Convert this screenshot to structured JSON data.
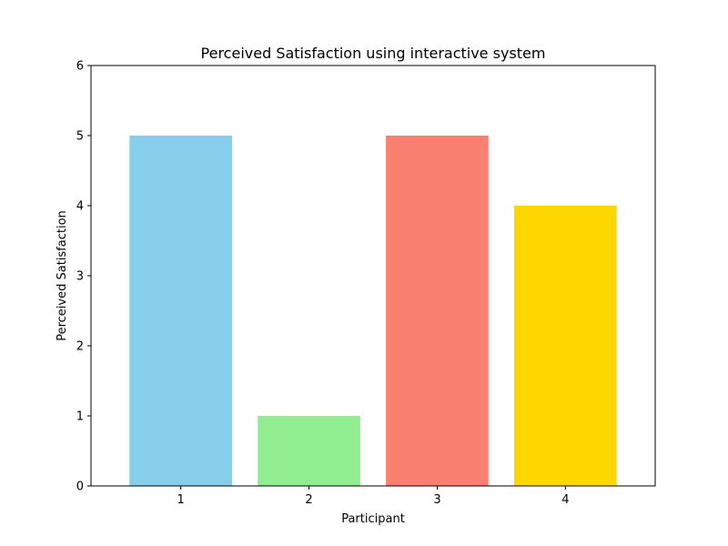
{
  "chart_data": {
    "type": "bar",
    "title": "Perceived Satisfaction using interactive system",
    "xlabel": "Participant",
    "ylabel": "Perceived Satisfaction",
    "categories": [
      "1",
      "2",
      "3",
      "4"
    ],
    "values": [
      5,
      1,
      5,
      4
    ],
    "colors": [
      "#87ceeb",
      "#90ee90",
      "#fa8072",
      "#ffd700"
    ],
    "ylim": [
      0,
      6
    ],
    "yticks": [
      "0",
      "1",
      "2",
      "3",
      "4",
      "5",
      "6"
    ],
    "grid": false,
    "legend": "none"
  }
}
